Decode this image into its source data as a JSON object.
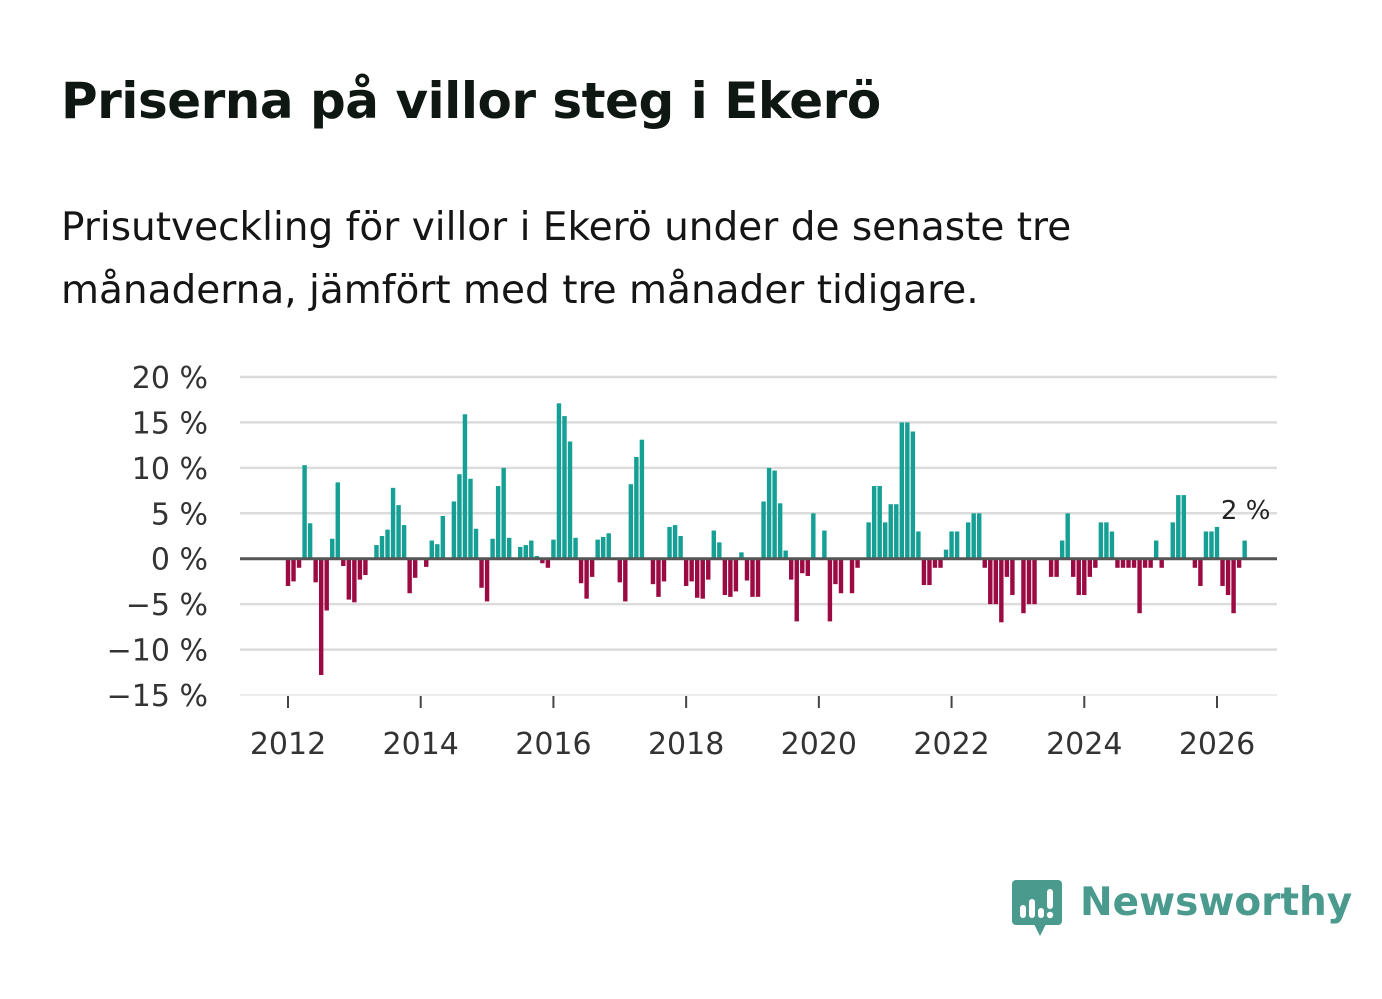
{
  "title": "Priserna på villor steg i Ekerö",
  "subtitle_lines": [
    "Prisutveckling för villor i Ekerö under de senaste tre",
    "månaderna, jämfört med tre månader tidigare."
  ],
  "brand": {
    "name": "Newsworthy",
    "icon": "newsworthy-logo-icon",
    "color": "#4a9a8e"
  },
  "colors": {
    "positive": "#16a095",
    "negative": "#9c0a43",
    "grid": "#dcdcdc",
    "zero_line": "#555555"
  },
  "chart_data": {
    "type": "bar",
    "title": "Priserna på villor steg i Ekerö",
    "xlabel": "",
    "ylabel": "",
    "ylim": [
      -15,
      20
    ],
    "yticks": [
      20,
      15,
      10,
      5,
      0,
      -5,
      -10,
      -15
    ],
    "ytick_labels": [
      "20 %",
      "15 %",
      "10 %",
      "5 %",
      "0 %",
      "−5 %",
      "−10 %",
      "−15 %"
    ],
    "xticks": [
      "2012",
      "2014",
      "2016",
      "2018",
      "2020",
      "2022",
      "2024",
      "2026"
    ],
    "x_start": "2012-01",
    "x_end": "2026-03",
    "last_value_label": "2 %",
    "series": [
      {
        "name": "Prisutveckling",
        "unit": "%",
        "values": [
          -3,
          -2.5,
          -1,
          10.3,
          3.9,
          -2.6,
          -12.8,
          -5.7,
          2.2,
          8.4,
          -0.8,
          -4.5,
          -4.8,
          -2.3,
          -1.8,
          0,
          1.5,
          2.5,
          3.2,
          7.8,
          5.9,
          3.7,
          -3.8,
          -2.1,
          0,
          -0.9,
          2,
          1.6,
          4.7,
          0,
          6.3,
          9.3,
          15.9,
          8.8,
          3.3,
          -3.2,
          -4.7,
          2.2,
          8,
          10,
          2.3,
          0,
          1.3,
          1.5,
          2,
          0.3,
          -0.5,
          -1,
          2.1,
          17.1,
          15.7,
          12.9,
          2.3,
          -2.7,
          -4.4,
          -2,
          2.1,
          2.4,
          2.8,
          0,
          -2.6,
          -4.7,
          8.2,
          11.2,
          13.1,
          0,
          -2.8,
          -4.2,
          -2.5,
          3.5,
          3.7,
          2.5,
          -3,
          -2.5,
          -4.3,
          -4.4,
          -2.3,
          3.1,
          1.8,
          -4,
          -4.2,
          -3.6,
          0.7,
          -2.4,
          -4.2,
          -4.2,
          6.3,
          10,
          9.7,
          6.1,
          0.9,
          -2.3,
          -6.9,
          -1.6,
          -1.9,
          5,
          0,
          3.1,
          -6.9,
          -2.8,
          -3.8,
          0,
          -3.8,
          -1,
          0,
          4,
          8,
          8,
          4,
          6,
          6,
          15,
          15,
          14,
          3,
          -2.9,
          -2.9,
          -1,
          -1,
          1,
          3,
          3,
          0,
          4,
          5,
          5,
          -1,
          -5,
          -5,
          -7,
          -2,
          -4,
          0,
          -6,
          -5,
          -5,
          0,
          0,
          -2,
          -2,
          2,
          5,
          -2,
          -4,
          -4,
          -2,
          -1,
          4,
          4,
          3,
          -1,
          -1,
          -1,
          -1,
          -6,
          -1,
          -1,
          2,
          -1,
          0,
          4,
          7,
          7,
          0,
          -1,
          -3,
          3,
          3,
          3.5,
          -3,
          -4,
          -6,
          -1,
          2
        ]
      }
    ]
  }
}
